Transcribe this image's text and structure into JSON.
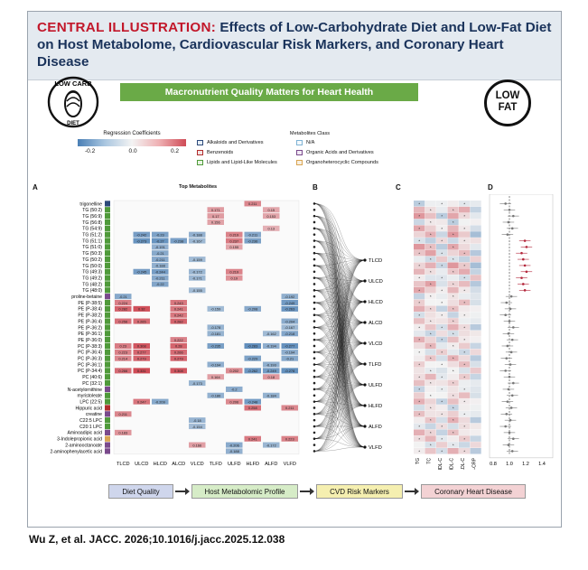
{
  "header": {
    "prefix": "CENTRAL ILLUSTRATION:",
    "title": "Effects of Low-Carbohydrate Diet and Low-Fat Diet on Host Metabolome, Cardiovascular Risk Markers, and Coronary Heart Disease"
  },
  "banner": "Macronutrient Quality Matters for Heart Health",
  "logos": {
    "low_carb": [
      "LOW CARB",
      "DIET"
    ],
    "low_fat": [
      "LOW",
      "FAT"
    ]
  },
  "legend_regression": {
    "label": "Regression Coefficients",
    "ticks": [
      "-0.2",
      "0.0",
      "0.2"
    ]
  },
  "legend_classes": {
    "label": "Metabolites Class",
    "items": [
      {
        "name": "Alkaloids and Derivatives",
        "color": "#e6eef6",
        "border": "#2d4a7a"
      },
      {
        "name": "N/A",
        "color": "#f4f9fc",
        "border": "#7fb3d5"
      },
      {
        "name": "Benzenoids",
        "color": "#f3e4e4",
        "border": "#b12d2d"
      },
      {
        "name": "Organic Acids and Derivatives",
        "color": "#f0e9f3",
        "border": "#7a4a8c"
      },
      {
        "name": "Lipids and Lipid-Like Molecules",
        "color": "#e8f3e2",
        "border": "#4f9a3a"
      },
      {
        "name": "Organoheterocyclic Compounds",
        "color": "#f7efe2",
        "border": "#d9a451"
      }
    ]
  },
  "panels": {
    "A": "A",
    "B": "B",
    "C": "C",
    "D": "D"
  },
  "top_metabolites_label": "Top Metabolites",
  "diets": [
    "TLCD",
    "ULCD",
    "HLCD",
    "ALCD",
    "VLCD",
    "TLFD",
    "ULFD",
    "HLFD",
    "ALFD",
    "VLFD"
  ],
  "metabolites": [
    {
      "name": "trigonelline",
      "cls": "#2d4a7a"
    },
    {
      "name": "TG (50:2)",
      "cls": "#4f9a3a"
    },
    {
      "name": "TG (56:9)",
      "cls": "#4f9a3a"
    },
    {
      "name": "TG (56:8)",
      "cls": "#4f9a3a"
    },
    {
      "name": "TG (54:9)",
      "cls": "#4f9a3a"
    },
    {
      "name": "TG (51:2)",
      "cls": "#4f9a3a"
    },
    {
      "name": "TG (51:1)",
      "cls": "#4f9a3a"
    },
    {
      "name": "TG (51:0)",
      "cls": "#4f9a3a"
    },
    {
      "name": "TG (50:3)",
      "cls": "#4f9a3a"
    },
    {
      "name": "TG (50:2)",
      "cls": "#4f9a3a"
    },
    {
      "name": "TG (50:0)",
      "cls": "#4f9a3a"
    },
    {
      "name": "TG (49:3)",
      "cls": "#4f9a3a"
    },
    {
      "name": "TG (49:2)",
      "cls": "#4f9a3a"
    },
    {
      "name": "TG (48:2)",
      "cls": "#4f9a3a"
    },
    {
      "name": "TG (48:0)",
      "cls": "#4f9a3a"
    },
    {
      "name": "proline-betaine",
      "cls": "#7a4a8c"
    },
    {
      "name": "PE (P-38:5)",
      "cls": "#4f9a3a"
    },
    {
      "name": "PE (P-38:4)",
      "cls": "#4f9a3a"
    },
    {
      "name": "PE (P-38:2)",
      "cls": "#4f9a3a"
    },
    {
      "name": "PE (P-36:4)",
      "cls": "#4f9a3a"
    },
    {
      "name": "PE (P-36:2)",
      "cls": "#4f9a3a"
    },
    {
      "name": "PE (P-36:1)",
      "cls": "#4f9a3a"
    },
    {
      "name": "PE (P-36:0)",
      "cls": "#4f9a3a"
    },
    {
      "name": "PC (P-38:3)",
      "cls": "#4f9a3a"
    },
    {
      "name": "PC (P-36:4)",
      "cls": "#4f9a3a"
    },
    {
      "name": "PC (P-36:3)",
      "cls": "#4f9a3a"
    },
    {
      "name": "PC (P-36:1)",
      "cls": "#4f9a3a"
    },
    {
      "name": "PC (P-34:4)",
      "cls": "#4f9a3a"
    },
    {
      "name": "PC (40:6)",
      "cls": "#4f9a3a"
    },
    {
      "name": "PC (32:1)",
      "cls": "#4f9a3a"
    },
    {
      "name": "N-acetylornithine",
      "cls": "#7a4a8c"
    },
    {
      "name": "myristoleate",
      "cls": "#4f9a3a"
    },
    {
      "name": "LPC (22:5)",
      "cls": "#4f9a3a"
    },
    {
      "name": "Hippuric acid",
      "cls": "#b12d2d"
    },
    {
      "name": "creatine",
      "cls": "#7a4a8c"
    },
    {
      "name": "C22:5 LPC",
      "cls": "#4f9a3a"
    },
    {
      "name": "C20:1 LPC",
      "cls": "#4f9a3a"
    },
    {
      "name": "Aminoadipic acid",
      "cls": "#7a4a8c"
    },
    {
      "name": "3-Indolepropionic acid",
      "cls": "#d9a451"
    },
    {
      "name": "2-aminooctanoate",
      "cls": "#7a4a8c"
    },
    {
      "name": "2-aminophenylacetic acid",
      "cls": "#7a4a8c"
    }
  ],
  "heatmap_cells": [
    [
      0,
      7,
      "0.211"
    ],
    [
      1,
      5,
      "0.171"
    ],
    [
      1,
      8,
      "0.15"
    ],
    [
      2,
      5,
      "0.17"
    ],
    [
      2,
      8,
      "0.153"
    ],
    [
      3,
      5,
      "0.156"
    ],
    [
      4,
      8,
      "0.13"
    ],
    [
      5,
      1,
      "-0.242"
    ],
    [
      5,
      2,
      "-0.23"
    ],
    [
      5,
      4,
      "-0.188"
    ],
    [
      5,
      6,
      "0.219"
    ],
    [
      5,
      7,
      "-0.211"
    ],
    [
      6,
      1,
      "-0.273"
    ],
    [
      6,
      2,
      "-0.27"
    ],
    [
      6,
      3,
      "-0.238"
    ],
    [
      6,
      4,
      "-0.167"
    ],
    [
      6,
      6,
      "0.237"
    ],
    [
      6,
      7,
      "-0.236"
    ],
    [
      7,
      2,
      "-0.191"
    ],
    [
      7,
      6,
      "0.155"
    ],
    [
      8,
      2,
      "-0.21"
    ],
    [
      9,
      2,
      "-0.211"
    ],
    [
      9,
      4,
      "-0.159"
    ],
    [
      10,
      2,
      "-0.188"
    ],
    [
      11,
      1,
      "-0.245"
    ],
    [
      11,
      2,
      "-0.244"
    ],
    [
      11,
      4,
      "-0.172"
    ],
    [
      11,
      6,
      "0.219"
    ],
    [
      12,
      2,
      "-0.211"
    ],
    [
      12,
      4,
      "-0.171"
    ],
    [
      12,
      6,
      "0.19"
    ],
    [
      13,
      2,
      "-0.22"
    ],
    [
      14,
      4,
      "-0.155"
    ],
    [
      15,
      0,
      "-0.21"
    ],
    [
      15,
      9,
      "-0.192"
    ],
    [
      16,
      0,
      "0.224"
    ],
    [
      16,
      3,
      "0.243"
    ],
    [
      16,
      9,
      "-0.249"
    ],
    [
      17,
      0,
      "0.282"
    ],
    [
      17,
      1,
      "0.32"
    ],
    [
      17,
      3,
      "0.241"
    ],
    [
      17,
      5,
      "-0.159"
    ],
    [
      17,
      7,
      "-0.208"
    ],
    [
      17,
      9,
      "-0.263"
    ],
    [
      18,
      3,
      "0.242"
    ],
    [
      19,
      0,
      "0.256"
    ],
    [
      19,
      1,
      "0.265"
    ],
    [
      19,
      3,
      "0.282"
    ],
    [
      19,
      9,
      "-0.204"
    ],
    [
      20,
      5,
      "-0.178"
    ],
    [
      20,
      9,
      "-0.167"
    ],
    [
      21,
      5,
      "-0.181"
    ],
    [
      21,
      8,
      "-0.162"
    ],
    [
      21,
      9,
      "-0.218"
    ],
    [
      22,
      3,
      "0.222"
    ],
    [
      23,
      0,
      "0.23"
    ],
    [
      23,
      1,
      "0.308"
    ],
    [
      23,
      3,
      "0.28"
    ],
    [
      23,
      5,
      "-0.235"
    ],
    [
      23,
      7,
      "-0.283"
    ],
    [
      23,
      8,
      "-0.194"
    ],
    [
      23,
      9,
      "-0.277"
    ],
    [
      24,
      0,
      "0.223"
    ],
    [
      24,
      1,
      "0.277"
    ],
    [
      24,
      3,
      "0.266"
    ],
    [
      24,
      9,
      "-0.194"
    ],
    [
      25,
      0,
      "0.214"
    ],
    [
      25,
      1,
      "0.279"
    ],
    [
      25,
      3,
      "0.279"
    ],
    [
      25,
      7,
      "-0.229"
    ],
    [
      25,
      9,
      "-0.21"
    ],
    [
      26,
      5,
      "-0.194"
    ],
    [
      26,
      8,
      "-0.193"
    ],
    [
      27,
      0,
      "0.266"
    ],
    [
      27,
      1,
      "0.331"
    ],
    [
      27,
      3,
      "0.308"
    ],
    [
      27,
      6,
      "0.202"
    ],
    [
      27,
      7,
      "-0.262"
    ],
    [
      27,
      8,
      "-0.249"
    ],
    [
      27,
      9,
      "-0.278"
    ],
    [
      28,
      5,
      "0.164"
    ],
    [
      28,
      8,
      "0.18"
    ],
    [
      29,
      4,
      "-0.173"
    ],
    [
      30,
      6,
      "-0.2"
    ],
    [
      31,
      5,
      "-0.186"
    ],
    [
      31,
      8,
      "-0.184"
    ],
    [
      32,
      1,
      "0.247"
    ],
    [
      32,
      2,
      "-0.209"
    ],
    [
      32,
      6,
      "0.206"
    ],
    [
      32,
      7,
      "-0.248"
    ],
    [
      33,
      7,
      "0.258"
    ],
    [
      33,
      9,
      "0.211"
    ],
    [
      34,
      0,
      "0.211"
    ],
    [
      35,
      4,
      "-0.18"
    ],
    [
      36,
      4,
      "-0.154"
    ],
    [
      37,
      0,
      "0.183"
    ],
    [
      38,
      7,
      "0.241"
    ],
    [
      38,
      9,
      "0.223"
    ],
    [
      39,
      4,
      "0.166"
    ],
    [
      39,
      6,
      "-0.206"
    ],
    [
      39,
      8,
      "-0.172"
    ],
    [
      40,
      6,
      "-0.188"
    ]
  ],
  "sankey_labels": [
    "TLCD",
    "ULCD",
    "HLCD",
    "ALCD",
    "VLCD",
    "TLFD",
    "ULFD",
    "HLFD",
    "ALFD",
    "VLFD"
  ],
  "risk_markers": [
    "TG",
    "TC",
    "HDL-C",
    "nonHDL-C",
    "LDL-C",
    "hs-CRP"
  ],
  "forest_ticks": [
    "0.8",
    "1.0",
    "1.2",
    "1.4"
  ],
  "flow_steps": [
    {
      "label": "Diet Quality",
      "color": "#cfd6ec"
    },
    {
      "label": "Host Metabolomic Profile",
      "color": "#d6ecc7"
    },
    {
      "label": "CVD Risk Markers",
      "color": "#f5efb0"
    },
    {
      "label": "Coronary Heart Disease",
      "color": "#f3d2d4"
    }
  ],
  "citation": "Wu Z, et al. JACC. 2026;10.1016/j.jacc.2025.12.038"
}
